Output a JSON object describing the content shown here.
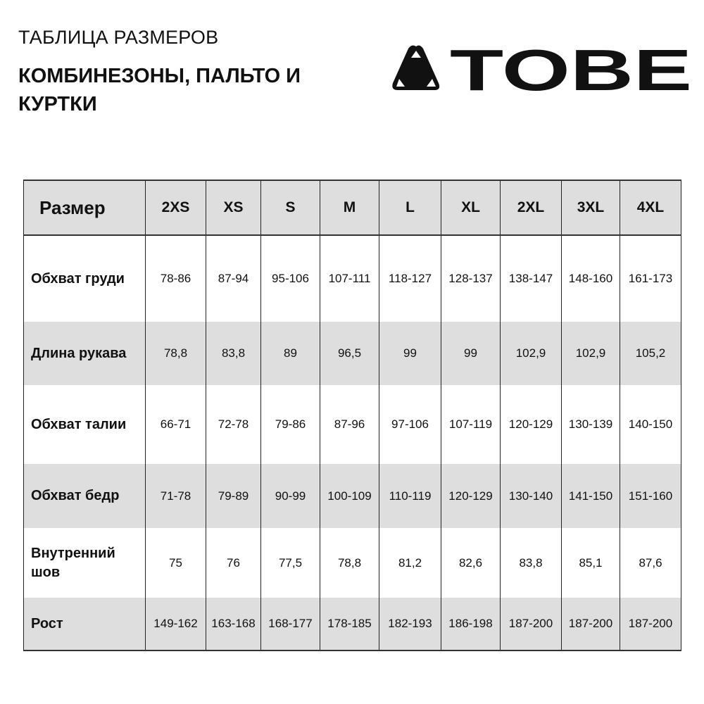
{
  "header": {
    "supertitle": "ТАБЛИЦА РАЗМЕРОВ",
    "title": "КОМБИНЕЗОНЫ, ПАЛЬТО И КУРТКИ",
    "logo_text": "TOBE"
  },
  "table": {
    "corner_label": "Размер",
    "sizes": [
      "2XS",
      "XS",
      "S",
      "M",
      "L",
      "XL",
      "2XL",
      "3XL",
      "4XL"
    ],
    "rows": [
      {
        "label": "Обхват груди",
        "values": [
          "78-86",
          "87-94",
          "95-106",
          "107-111",
          "118-127",
          "128-137",
          "138-147",
          "148-160",
          "161-173"
        ]
      },
      {
        "label": "Длина рукава",
        "values": [
          "78,8",
          "83,8",
          "89",
          "96,5",
          "99",
          "99",
          "102,9",
          "102,9",
          "105,2"
        ]
      },
      {
        "label": "Обхват талии",
        "values": [
          "66-71",
          "72-78",
          "79-86",
          "87-96",
          "97-106",
          "107-119",
          "120-129",
          "130-139",
          "140-150"
        ]
      },
      {
        "label": "Обхват бедр",
        "values": [
          "71-78",
          "79-89",
          "90-99",
          "100-109",
          "110-119",
          "120-129",
          "130-140",
          "141-150",
          "151-160"
        ]
      },
      {
        "label": "Внутренний шов",
        "values": [
          "75",
          "76",
          "77,5",
          "78,8",
          "81,2",
          "82,6",
          "83,8",
          "85,1",
          "87,6"
        ]
      },
      {
        "label": "Рост",
        "values": [
          "149-162",
          "163-168",
          "168-177",
          "178-185",
          "182-193",
          "186-198",
          "187-200",
          "187-200",
          "187-200"
        ]
      }
    ]
  },
  "colors": {
    "row_shade": "#dedede",
    "text": "#111111"
  }
}
